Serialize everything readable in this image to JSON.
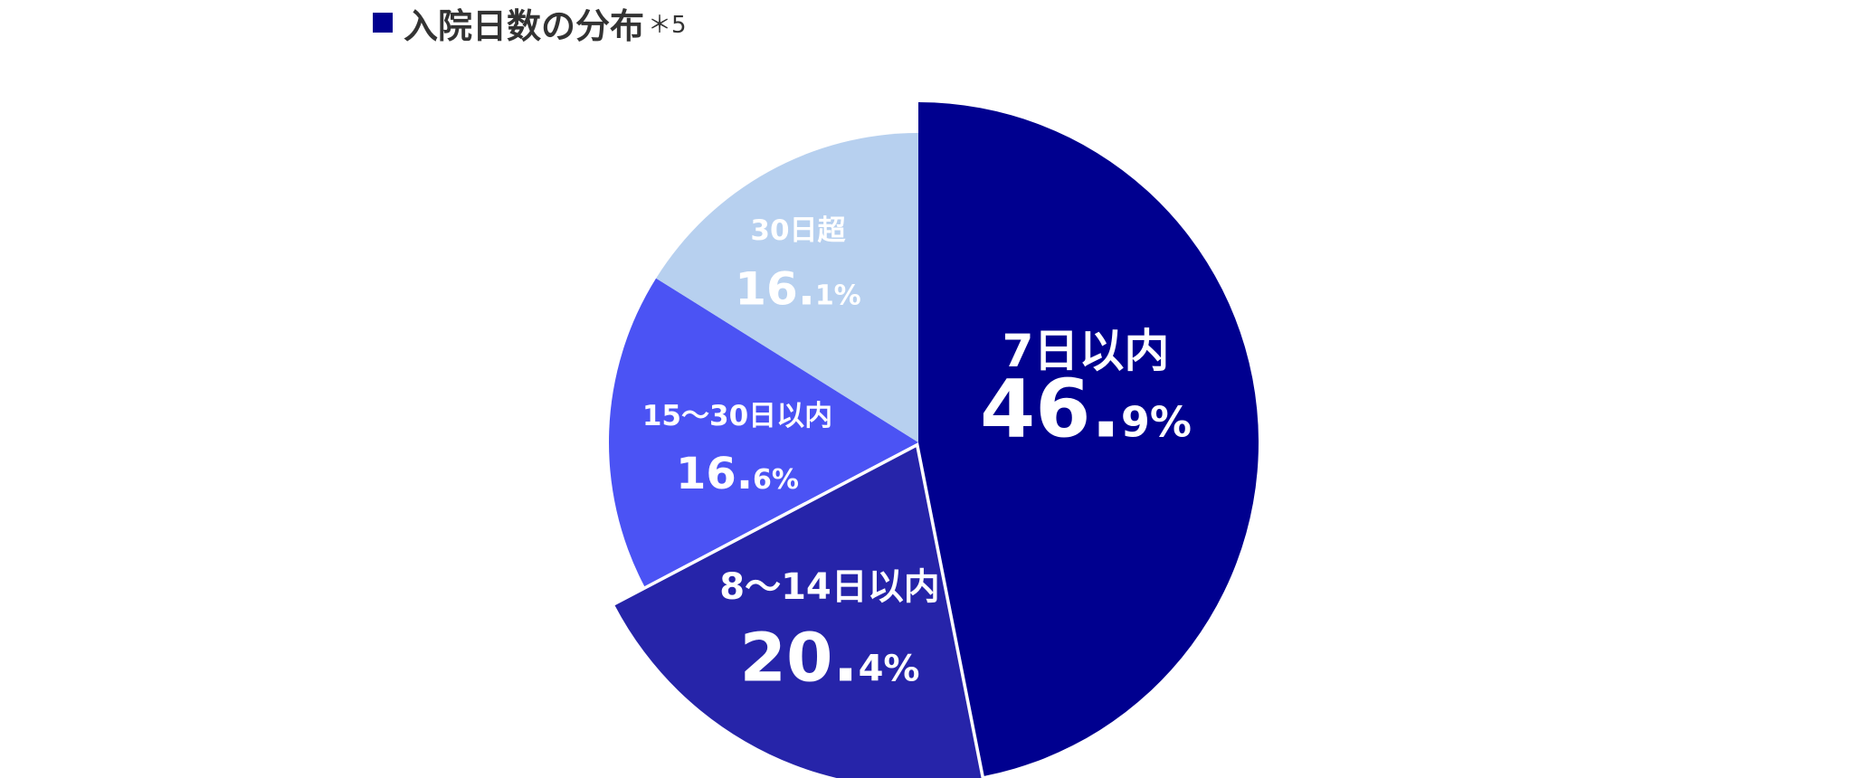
{
  "title": {
    "text": "入院日数の分布",
    "note": "＊5",
    "marker_color": "#00008F"
  },
  "chart_data": {
    "type": "pie",
    "start": "12 o'clock",
    "direction": "clockwise",
    "slices": [
      {
        "label": "7日以内",
        "value": 46.9,
        "value_int": "46.",
        "value_dec": "9%",
        "color": "#00008F"
      },
      {
        "label": "8〜14日以内",
        "value": 20.4,
        "value_int": "20.",
        "value_dec": "4%",
        "color": "#2624A9",
        "exploded": true
      },
      {
        "label": "15〜30日以内",
        "value": 16.6,
        "value_int": "16.",
        "value_dec": "6%",
        "color": "#4B53F4"
      },
      {
        "label": "30日超",
        "value": 16.1,
        "value_int": "16.",
        "value_dec": "1%",
        "color": "#B7D0EF"
      }
    ]
  }
}
